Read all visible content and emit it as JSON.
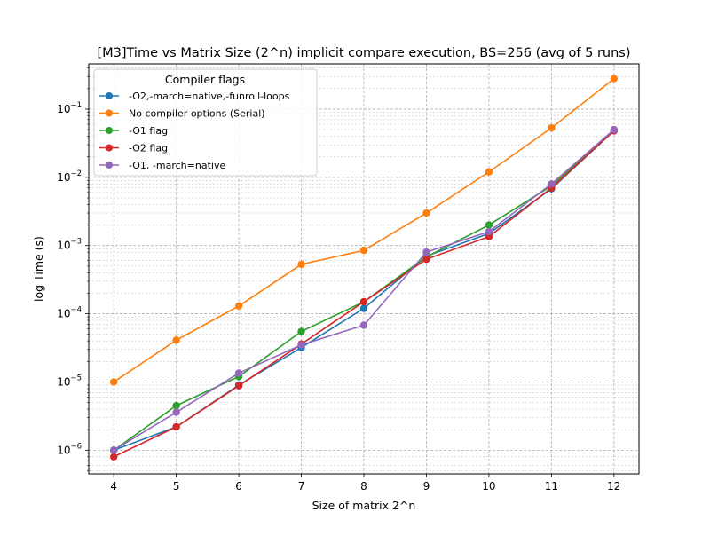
{
  "chart_data": {
    "type": "line",
    "title": "[M3]Time vs Matrix Size (2^n) implicit compare execution, BS=256 (avg of 5 runs)",
    "xlabel": "Size of matrix 2^n",
    "ylabel": "log Time (s)",
    "x": [
      4,
      5,
      6,
      7,
      8,
      9,
      10,
      11,
      12
    ],
    "xlim": [
      3.6,
      12.4
    ],
    "yscale": "log",
    "ylim": [
      4.5e-07,
      0.46
    ],
    "x_ticks": [
      "4",
      "5",
      "6",
      "7",
      "8",
      "9",
      "10",
      "11",
      "12"
    ],
    "y_ticks": [
      {
        "mantissa": "10",
        "exponent": "−6",
        "value": 1e-06
      },
      {
        "mantissa": "10",
        "exponent": "−5",
        "value": 1e-05
      },
      {
        "mantissa": "10",
        "exponent": "−4",
        "value": 0.0001
      },
      {
        "mantissa": "10",
        "exponent": "−3",
        "value": 0.001
      },
      {
        "mantissa": "10",
        "exponent": "−2",
        "value": 0.01
      },
      {
        "mantissa": "10",
        "exponent": "−1",
        "value": 0.1
      }
    ],
    "grid": true,
    "legend": {
      "title": "Compiler flags",
      "placement": "upper-left"
    },
    "series": [
      {
        "name": "-O2,-march=native,-funroll-loops",
        "color": "#1f77b4",
        "values": [
          1e-06,
          2.2e-06,
          9e-06,
          3.2e-05,
          0.00012,
          0.0007,
          0.0015,
          0.0068,
          0.048
        ]
      },
      {
        "name": "No compiler options (Serial)",
        "color": "#ff7f0e",
        "values": [
          1e-05,
          4.1e-05,
          0.00013,
          0.00053,
          0.00085,
          0.003,
          0.012,
          0.053,
          0.28
        ]
      },
      {
        "name": "-O1 flag",
        "color": "#2ca02c",
        "values": [
          1e-06,
          4.5e-06,
          1.2e-05,
          5.5e-05,
          0.00015,
          0.00068,
          0.002,
          0.0075,
          0.049
        ]
      },
      {
        "name": "-O2 flag",
        "color": "#d62728",
        "values": [
          8e-07,
          2.2e-06,
          8.8e-06,
          3.6e-05,
          0.00015,
          0.00063,
          0.00135,
          0.007,
          0.048
        ]
      },
      {
        "name": "-O1, -march=native",
        "color": "#9467bd",
        "values": [
          1e-06,
          3.6e-06,
          1.35e-05,
          3.5e-05,
          6.8e-05,
          0.0008,
          0.0016,
          0.008,
          0.05
        ]
      }
    ]
  }
}
